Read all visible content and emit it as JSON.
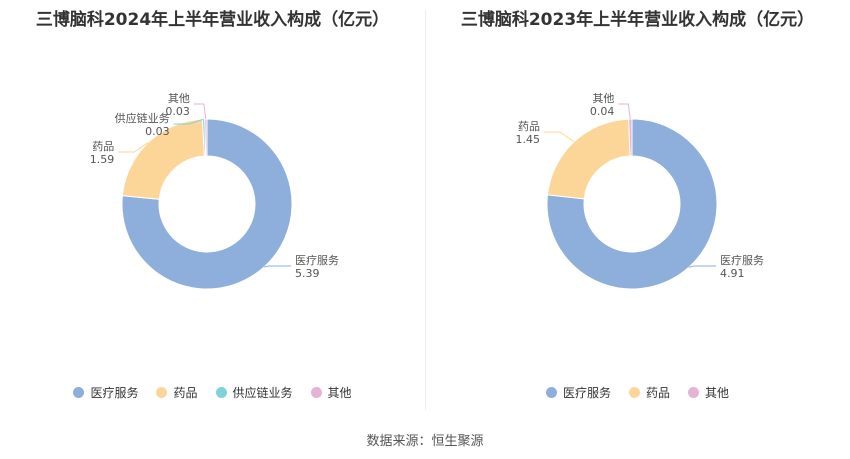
{
  "colors": {
    "医疗服务": "#8eaedb",
    "药品": "#fcd699",
    "供应链业务": "#7dd3d9",
    "其他": "#e5b3d6"
  },
  "source": "数据来源：恒生聚源",
  "chart_data": [
    {
      "type": "pie",
      "title": "三博脑科2024年上半年营业收入构成（亿元）",
      "categories": [
        "医疗服务",
        "药品",
        "供应链业务",
        "其他"
      ],
      "values": [
        5.39,
        1.59,
        0.03,
        0.03
      ],
      "labels": [
        {
          "name": "医疗服务",
          "value": "5.39"
        },
        {
          "name": "药品",
          "value": "1.59"
        },
        {
          "name": "供应链业务",
          "value": "0.03"
        },
        {
          "name": "其他",
          "value": "0.03"
        }
      ],
      "legend": [
        "医疗服务",
        "药品",
        "供应链业务",
        "其他"
      ],
      "legend_position": "bottom"
    },
    {
      "type": "pie",
      "title": "三博脑科2023年上半年营业收入构成（亿元）",
      "categories": [
        "医疗服务",
        "药品",
        "其他"
      ],
      "values": [
        4.91,
        1.45,
        0.04
      ],
      "labels": [
        {
          "name": "医疗服务",
          "value": "4.91"
        },
        {
          "name": "药品",
          "value": "1.45"
        },
        {
          "name": "其他",
          "value": "0.04"
        }
      ],
      "legend": [
        "医疗服务",
        "药品",
        "其他"
      ],
      "legend_position": "bottom"
    }
  ]
}
